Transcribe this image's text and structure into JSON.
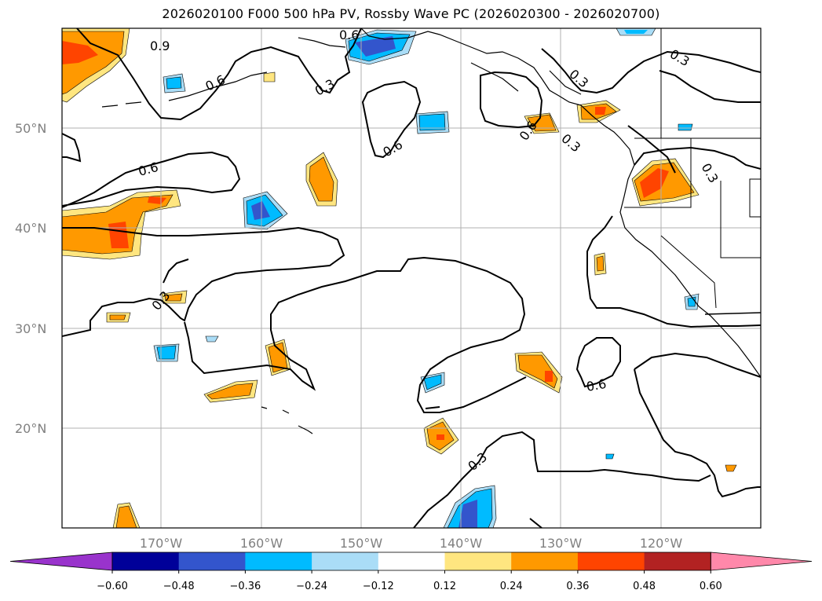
{
  "title": "2026020100 F000 500 hPa PV, Rossby Wave PC (2026020300 - 2026020700)",
  "lat_labels": [
    "50°N",
    "40°N",
    "30°N",
    "20°N"
  ],
  "lon_labels": [
    "170°W",
    "160°W",
    "150°W",
    "140°W",
    "130°W",
    "120°W"
  ],
  "contour_labels": [
    "0.9",
    "0.6",
    "0.6",
    "0.3",
    "0.3",
    "0.6",
    "0.6",
    "0.3",
    "0.6",
    "0.3",
    "0.3",
    "0.3",
    "0.6",
    "0.3",
    "0.6"
  ],
  "colorbar": {
    "ticks": [
      "−0.60",
      "−0.48",
      "−0.36",
      "−0.24",
      "−0.12",
      "0.12",
      "0.24",
      "0.36",
      "0.48",
      "0.60"
    ],
    "colors": [
      "#9933cc",
      "#000099",
      "#3355cc",
      "#00bbff",
      "#aaddf7",
      "#ffffff",
      "#ffe680",
      "#ff9900",
      "#ff4400",
      "#b22222",
      "#ff88aa"
    ]
  }
}
